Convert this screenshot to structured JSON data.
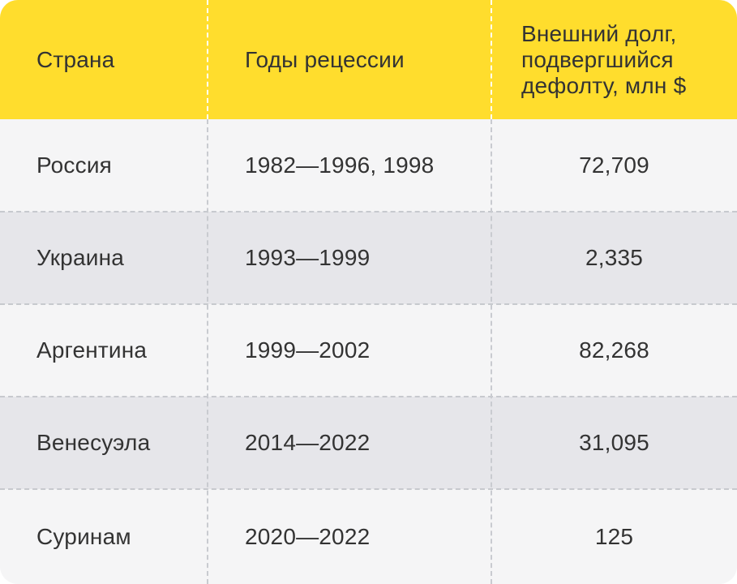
{
  "table": {
    "headers": [
      "Страна",
      "Годы рецессии",
      "Внешний долг, подвергшийся дефолту, млн $"
    ],
    "rows": [
      [
        "Россия",
        "1982—1996, 1998",
        "72,709"
      ],
      [
        "Украина",
        "1993—1999",
        "2,335"
      ],
      [
        "Аргентина",
        "1999—2002",
        "82,268"
      ],
      [
        "Венесуэла",
        "2014—2022",
        "31,095"
      ],
      [
        "Суринам",
        "2020—2022",
        "125"
      ]
    ]
  },
  "colors": {
    "header_background": "#ffdd2d",
    "row_light": "#f5f5f6",
    "row_dark": "#e6e6ea",
    "text": "#333333",
    "divider": "#c7c9ce"
  }
}
